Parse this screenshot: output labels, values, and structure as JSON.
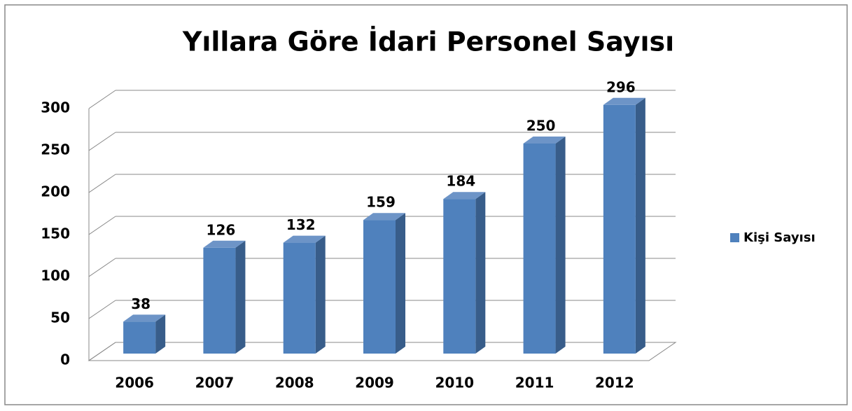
{
  "chart_data": {
    "type": "bar3d",
    "title": "Yıllara Göre İdari Personel Sayısı",
    "categories": [
      "2006",
      "2007",
      "2008",
      "2009",
      "2010",
      "2011",
      "2012"
    ],
    "series": [
      {
        "name": "Kişi Sayısı",
        "color": "#4f81bd",
        "values": [
          38,
          126,
          132,
          159,
          184,
          250,
          296
        ]
      }
    ],
    "ylim": [
      0,
      300
    ],
    "yticks": [
      0,
      50,
      100,
      150,
      200,
      250,
      300
    ],
    "grid": true,
    "legend": "right"
  }
}
